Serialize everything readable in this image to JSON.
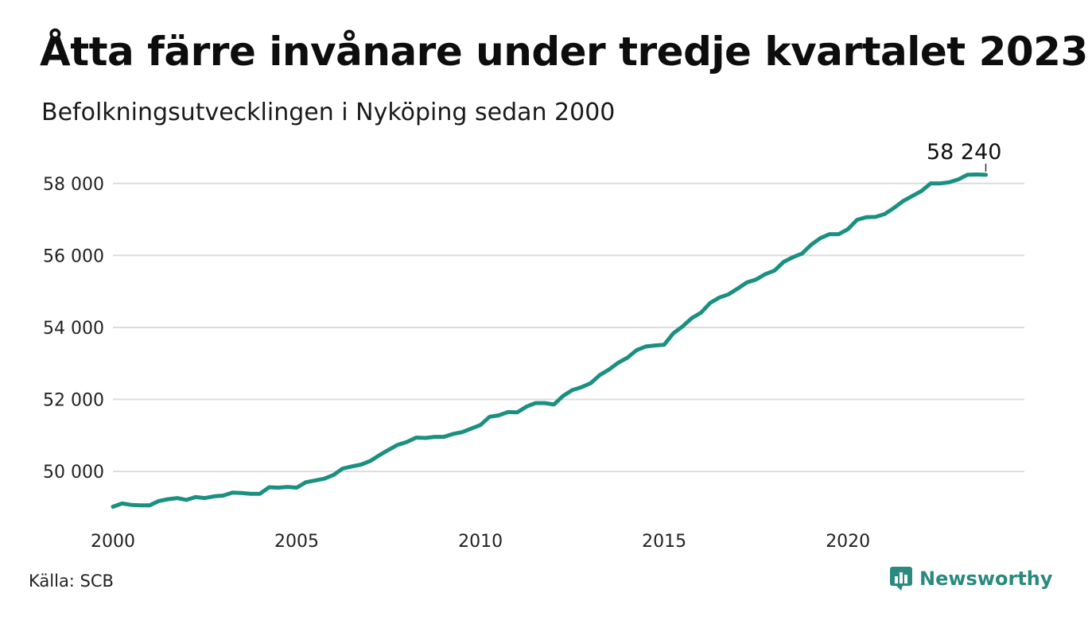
{
  "header": {
    "title": "Åtta färre invånare under tredje kvartalet 2023",
    "subtitle": "Befolkningsutvecklingen i Nyköping sedan 2000"
  },
  "footer": {
    "source": "Källa: SCB",
    "brand": "Newsworthy",
    "brand_color": "#2a8a80"
  },
  "chart_data": {
    "type": "line",
    "title": "Åtta färre invånare under tredje kvartalet 2023",
    "subtitle": "Befolkningsutvecklingen i Nyköping sedan 2000",
    "xlabel": "",
    "ylabel": "",
    "xlim": [
      2000,
      2024.8
    ],
    "ylim": [
      48700,
      58900
    ],
    "x_ticks": [
      2000,
      2005,
      2010,
      2015,
      2020
    ],
    "x_tick_labels": [
      "2000",
      "2005",
      "2010",
      "2015",
      "2020"
    ],
    "y_ticks": [
      50000,
      52000,
      54000,
      56000,
      58000
    ],
    "y_tick_labels": [
      "50 000",
      "52 000",
      "54 000",
      "56 000",
      "58 000"
    ],
    "grid": "horizontal",
    "line_color": "#1a9080",
    "annotation": {
      "text": "58 240",
      "x": 2023.75,
      "y": 58240
    },
    "series": [
      {
        "x": [
          2000.0,
          2000.25,
          2000.5,
          2000.75,
          2001.0,
          2001.25,
          2001.5,
          2001.75,
          2002.0,
          2002.25,
          2002.5,
          2002.75,
          2003.0,
          2003.25,
          2003.5,
          2003.75,
          2004.0,
          2004.25,
          2004.5,
          2004.75,
          2005.0,
          2005.25,
          2005.5,
          2005.75,
          2006.0,
          2006.25,
          2006.5,
          2006.75,
          2007.0,
          2007.25,
          2007.5,
          2007.75,
          2008.0,
          2008.25,
          2008.5,
          2008.75,
          2009.0,
          2009.25,
          2009.5,
          2009.75,
          2010.0,
          2010.25,
          2010.5,
          2010.75,
          2011.0,
          2011.25,
          2011.5,
          2011.75,
          2012.0,
          2012.25,
          2012.5,
          2012.75,
          2013.0,
          2013.25,
          2013.5,
          2013.75,
          2014.0,
          2014.25,
          2014.5,
          2014.75,
          2015.0,
          2015.25,
          2015.5,
          2015.75,
          2016.0,
          2016.25,
          2016.5,
          2016.75,
          2017.0,
          2017.25,
          2017.5,
          2017.75,
          2018.0,
          2018.25,
          2018.5,
          2018.75,
          2019.0,
          2019.25,
          2019.5,
          2019.75,
          2020.0,
          2020.25,
          2020.5,
          2020.75,
          2021.0,
          2021.25,
          2021.5,
          2021.75,
          2022.0,
          2022.25,
          2022.5,
          2022.75,
          2023.0,
          2023.25,
          2023.5,
          2023.75
        ],
        "values": [
          49020,
          49110,
          49070,
          49060,
          49060,
          49180,
          49230,
          49260,
          49210,
          49290,
          49260,
          49310,
          49330,
          49410,
          49400,
          49380,
          49380,
          49560,
          49550,
          49570,
          49550,
          49700,
          49750,
          49800,
          49900,
          50080,
          50140,
          50190,
          50290,
          50450,
          50600,
          50740,
          50820,
          50940,
          50930,
          50960,
          50960,
          51040,
          51090,
          51190,
          51290,
          51520,
          51560,
          51650,
          51640,
          51800,
          51900,
          51900,
          51860,
          52100,
          52260,
          52340,
          52450,
          52680,
          52830,
          53020,
          53160,
          53370,
          53470,
          53500,
          53520,
          53840,
          54030,
          54260,
          54410,
          54680,
          54830,
          54920,
          55080,
          55250,
          55330,
          55480,
          55580,
          55820,
          55950,
          56050,
          56300,
          56480,
          56590,
          56590,
          56730,
          56990,
          57060,
          57070,
          57150,
          57320,
          57510,
          57650,
          57790,
          58000,
          58000,
          58030,
          58110,
          58240,
          58248,
          58240
        ]
      }
    ]
  }
}
